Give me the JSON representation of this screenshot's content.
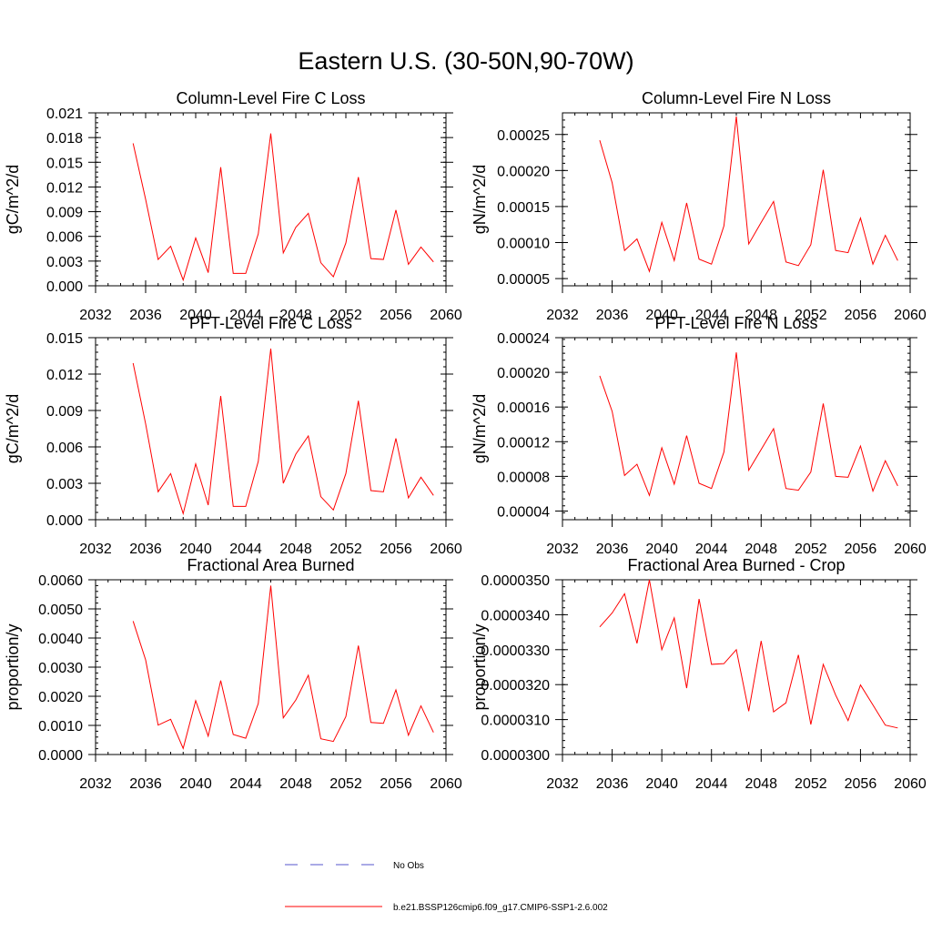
{
  "figure": {
    "title": "Eastern U.S. (30-50N,90-70W)",
    "line_color": "#ff0000",
    "obs_color": "#5555cc"
  },
  "legend": {
    "entries": [
      {
        "label": "No Obs",
        "style": "dashed",
        "color": "#5555cc"
      },
      {
        "label": "b.e21.BSSP126cmip6.f09_g17.CMIP6-SSP1-2.6.002",
        "style": "solid",
        "color": "#ff0000"
      }
    ]
  },
  "chart_data": [
    {
      "type": "line",
      "title": "Column-Level Fire C Loss",
      "xlabel": "",
      "ylabel": "gC/m^2/d",
      "xlim": [
        2032,
        2060
      ],
      "ylim": [
        0,
        0.021
      ],
      "xticks": [
        "2032",
        "2036",
        "2040",
        "2044",
        "2048",
        "2052",
        "2056",
        "2060"
      ],
      "yticks": [
        "0.000",
        "0.003",
        "0.006",
        "0.009",
        "0.012",
        "0.015",
        "0.018",
        "0.021"
      ],
      "x": [
        2035,
        2036,
        2037,
        2038,
        2039,
        2040,
        2041,
        2042,
        2043,
        2044,
        2045,
        2046,
        2047,
        2048,
        2049,
        2050,
        2051,
        2052,
        2053,
        2054,
        2055,
        2056,
        2057,
        2058,
        2059
      ],
      "series": [
        {
          "name": "b.e21.BSSP126cmip6.f09_g17.CMIP6-SSP1-2.6.002",
          "values": [
            0.0173,
            0.0105,
            0.0032,
            0.0048,
            0.0007,
            0.0058,
            0.0016,
            0.0144,
            0.0015,
            0.0015,
            0.0063,
            0.0185,
            0.004,
            0.0071,
            0.0088,
            0.0028,
            0.0011,
            0.0052,
            0.0132,
            0.0033,
            0.0032,
            0.0092,
            0.0026,
            0.0047,
            0.0029
          ]
        }
      ]
    },
    {
      "type": "line",
      "title": "Column-Level Fire N Loss",
      "xlabel": "",
      "ylabel": "gN/m^2/d",
      "xlim": [
        2032,
        2060
      ],
      "ylim": [
        4e-05,
        0.00028
      ],
      "xticks": [
        "2032",
        "2036",
        "2040",
        "2044",
        "2048",
        "2052",
        "2056",
        "2060"
      ],
      "yticks": [
        "0.00005",
        "0.00010",
        "0.00015",
        "0.00020",
        "0.00025"
      ],
      "x": [
        2035,
        2036,
        2037,
        2038,
        2039,
        2040,
        2041,
        2042,
        2043,
        2044,
        2045,
        2046,
        2047,
        2048,
        2049,
        2050,
        2051,
        2052,
        2053,
        2054,
        2055,
        2056,
        2057,
        2058,
        2059
      ],
      "series": [
        {
          "name": "b.e21.BSSP126cmip6.f09_g17.CMIP6-SSP1-2.6.002",
          "values": [
            0.000242,
            0.000183,
            8.9e-05,
            0.000105,
            6e-05,
            0.000128,
            7.5e-05,
            0.000155,
            7.7e-05,
            7e-05,
            0.000123,
            0.000275,
            9.8e-05,
            0.000128,
            0.000157,
            7.3e-05,
            6.8e-05,
            9.7e-05,
            0.000201,
            8.9e-05,
            8.6e-05,
            0.000134,
            7e-05,
            0.00011,
            7.5e-05
          ]
        }
      ]
    },
    {
      "type": "line",
      "title": "PFT-Level Fire C Loss",
      "xlabel": "",
      "ylabel": "gC/m^2/d",
      "xlim": [
        2032,
        2060
      ],
      "ylim": [
        0,
        0.015
      ],
      "xticks": [
        "2032",
        "2036",
        "2040",
        "2044",
        "2048",
        "2052",
        "2056",
        "2060"
      ],
      "yticks": [
        "0.000",
        "0.003",
        "0.006",
        "0.009",
        "0.012",
        "0.015"
      ],
      "x": [
        2035,
        2036,
        2037,
        2038,
        2039,
        2040,
        2041,
        2042,
        2043,
        2044,
        2045,
        2046,
        2047,
        2048,
        2049,
        2050,
        2051,
        2052,
        2053,
        2054,
        2055,
        2056,
        2057,
        2058,
        2059
      ],
      "series": [
        {
          "name": "b.e21.BSSP126cmip6.f09_g17.CMIP6-SSP1-2.6.002",
          "values": [
            0.0129,
            0.0079,
            0.0023,
            0.0038,
            0.0005,
            0.0046,
            0.0012,
            0.0102,
            0.0011,
            0.0011,
            0.0048,
            0.0141,
            0.003,
            0.0054,
            0.0069,
            0.0019,
            0.0008,
            0.0038,
            0.0098,
            0.0024,
            0.0023,
            0.0067,
            0.0018,
            0.0035,
            0.002
          ]
        }
      ]
    },
    {
      "type": "line",
      "title": "PFT-Level Fire N Loss",
      "xlabel": "",
      "ylabel": "gN/m^2/d",
      "xlim": [
        2032,
        2060
      ],
      "ylim": [
        3e-05,
        0.00024
      ],
      "xticks": [
        "2032",
        "2036",
        "2040",
        "2044",
        "2048",
        "2052",
        "2056",
        "2060"
      ],
      "yticks": [
        "0.00004",
        "0.00008",
        "0.00012",
        "0.00016",
        "0.00020",
        "0.00024"
      ],
      "x": [
        2035,
        2036,
        2037,
        2038,
        2039,
        2040,
        2041,
        2042,
        2043,
        2044,
        2045,
        2046,
        2047,
        2048,
        2049,
        2050,
        2051,
        2052,
        2053,
        2054,
        2055,
        2056,
        2057,
        2058,
        2059
      ],
      "series": [
        {
          "name": "b.e21.BSSP126cmip6.f09_g17.CMIP6-SSP1-2.6.002",
          "values": [
            0.000196,
            0.000155,
            8.1e-05,
            9.4e-05,
            5.8e-05,
            0.000113,
            7.1e-05,
            0.000127,
            7.2e-05,
            6.6e-05,
            0.000108,
            0.000223,
            8.7e-05,
            0.000111,
            0.000135,
            6.6e-05,
            6.4e-05,
            8.5e-05,
            0.000164,
            8e-05,
            7.9e-05,
            0.000115,
            6.3e-05,
            9.8e-05,
            6.9e-05
          ]
        }
      ]
    },
    {
      "type": "line",
      "title": "Fractional Area Burned",
      "xlabel": "",
      "ylabel": "proportion/y",
      "xlim": [
        2032,
        2060
      ],
      "ylim": [
        0,
        0.006
      ],
      "xticks": [
        "2032",
        "2036",
        "2040",
        "2044",
        "2048",
        "2052",
        "2056",
        "2060"
      ],
      "yticks": [
        "0.0000",
        "0.0010",
        "0.0020",
        "0.0030",
        "0.0040",
        "0.0050",
        "0.0060"
      ],
      "x": [
        2035,
        2036,
        2037,
        2038,
        2039,
        2040,
        2041,
        2042,
        2043,
        2044,
        2045,
        2046,
        2047,
        2048,
        2049,
        2050,
        2051,
        2052,
        2053,
        2054,
        2055,
        2056,
        2057,
        2058,
        2059
      ],
      "series": [
        {
          "name": "b.e21.BSSP126cmip6.f09_g17.CMIP6-SSP1-2.6.002",
          "values": [
            0.00458,
            0.00325,
            0.00101,
            0.00121,
            0.00021,
            0.00185,
            0.00063,
            0.00254,
            0.00069,
            0.00056,
            0.00175,
            0.0058,
            0.00126,
            0.00187,
            0.00272,
            0.00054,
            0.00045,
            0.0013,
            0.00374,
            0.0011,
            0.00107,
            0.00222,
            0.00066,
            0.00167,
            0.00076
          ]
        }
      ]
    },
    {
      "type": "line",
      "title": "Fractional Area Burned - Crop",
      "xlabel": "",
      "ylabel": "proportion/y",
      "xlim": [
        2032,
        2060
      ],
      "ylim": [
        3e-05,
        3.5e-05
      ],
      "xticks": [
        "2032",
        "2036",
        "2040",
        "2044",
        "2048",
        "2052",
        "2056",
        "2060"
      ],
      "yticks": [
        "0.0000300",
        "0.0000310",
        "0.0000320",
        "0.0000330",
        "0.0000340",
        "0.0000350"
      ],
      "x": [
        2035,
        2036,
        2037,
        2038,
        2039,
        2040,
        2041,
        2042,
        2043,
        2044,
        2045,
        2046,
        2047,
        2048,
        2049,
        2050,
        2051,
        2052,
        2053,
        2054,
        2055,
        2056,
        2057,
        2058,
        2059
      ],
      "series": [
        {
          "name": "b.e21.BSSP126cmip6.f09_g17.CMIP6-SSP1-2.6.002",
          "values": [
            3.365e-05,
            3.405e-05,
            3.46e-05,
            3.318e-05,
            3.5e-05,
            3.3e-05,
            3.391e-05,
            3.19e-05,
            3.445e-05,
            3.258e-05,
            3.26e-05,
            3.3e-05,
            3.124e-05,
            3.325e-05,
            3.122e-05,
            3.148e-05,
            3.285e-05,
            3.086e-05,
            3.258e-05,
            3.17e-05,
            3.097e-05,
            3.199e-05,
            3.142e-05,
            3.084e-05,
            3.076e-05
          ]
        }
      ]
    }
  ]
}
